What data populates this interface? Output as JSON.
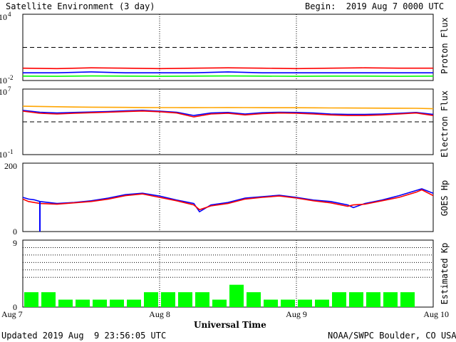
{
  "header": {
    "title": "Satellite Environment (3 day)",
    "begin": "Begin:  2019 Aug 7 0000 UTC"
  },
  "footer": {
    "xlabel": "Universal Time",
    "updated": "Updated 2019 Aug  9 23:56:05 UTC",
    "credit": "NOAA/SWPC Boulder, CO USA"
  },
  "colors": {
    "red": "#ff0000",
    "blue": "#0000ff",
    "green": "#00ff00",
    "orange": "#ffa500",
    "grid": "#000000"
  },
  "chart_data": [
    {
      "type": "line",
      "ylabel": "Proton Flux",
      "yscale": "log",
      "ylim": [
        0.01,
        10000
      ],
      "yticks": [
        {
          "label": "10",
          "sup": "4",
          "value": 10000
        },
        {
          "label": "10",
          "sup": "-2",
          "value": 0.01
        }
      ],
      "threshold": 10,
      "x": [
        0,
        6,
        12,
        18,
        24,
        30,
        36,
        42,
        48,
        54,
        60,
        66,
        72
      ],
      "series": [
        {
          "color": "red",
          "values": [
            0.13,
            0.12,
            0.14,
            0.13,
            0.12,
            0.13,
            0.14,
            0.13,
            0.12,
            0.13,
            0.14,
            0.13,
            0.13
          ]
        },
        {
          "color": "blue",
          "values": [
            0.05,
            0.05,
            0.06,
            0.05,
            0.05,
            0.05,
            0.06,
            0.05,
            0.05,
            0.05,
            0.05,
            0.05,
            0.05
          ]
        },
        {
          "color": "green",
          "values": [
            0.025,
            0.024,
            0.026,
            0.025,
            0.024,
            0.025,
            0.026,
            0.025,
            0.024,
            0.025,
            0.025,
            0.024,
            0.025
          ]
        }
      ]
    },
    {
      "type": "line",
      "ylabel": "Electron Flux",
      "yscale": "log",
      "ylim": [
        0.1,
        10000000
      ],
      "yticks": [
        {
          "label": "10",
          "sup": "7",
          "value": 10000000
        },
        {
          "label": "10",
          "sup": "-1",
          "value": 0.1
        }
      ],
      "threshold": 1000,
      "x": [
        0,
        3,
        6,
        9,
        12,
        15,
        18,
        21,
        24,
        27,
        30,
        33,
        36,
        39,
        42,
        45,
        48,
        51,
        54,
        57,
        60,
        63,
        66,
        69,
        72
      ],
      "series": [
        {
          "color": "orange",
          "values": [
            80000,
            75000,
            70000,
            65000,
            62000,
            60000,
            58000,
            56000,
            55000,
            55000,
            54000,
            55000,
            56000,
            55000,
            54000,
            53000,
            53000,
            52000,
            50000,
            49000,
            48000,
            47000,
            46000,
            45000,
            40000
          ]
        },
        {
          "color": "blue",
          "values": [
            25000,
            15000,
            12000,
            14000,
            16000,
            18000,
            22000,
            25000,
            20000,
            15000,
            6000,
            12000,
            14000,
            9000,
            13000,
            15000,
            14000,
            12000,
            9000,
            8000,
            8000,
            9000,
            11000,
            14000,
            8000
          ]
        },
        {
          "color": "red",
          "values": [
            20000,
            11000,
            9000,
            11000,
            13000,
            15000,
            18000,
            21000,
            17000,
            12000,
            4000,
            9000,
            11000,
            7000,
            10000,
            12000,
            11000,
            9000,
            7000,
            6000,
            6000,
            7000,
            9000,
            12000,
            6000
          ]
        }
      ]
    },
    {
      "type": "line",
      "ylabel": "GOES Hp",
      "ylim": [
        0,
        200
      ],
      "yticks": [
        {
          "label": "200",
          "value": 200
        },
        {
          "label": "0",
          "value": 0
        }
      ],
      "x": [
        0,
        1,
        2,
        3,
        6,
        9,
        12,
        15,
        18,
        21,
        24,
        27,
        30,
        31,
        33,
        36,
        39,
        42,
        45,
        48,
        51,
        54,
        57,
        58,
        60,
        63,
        66,
        69,
        70,
        72
      ],
      "series": [
        {
          "color": "blue",
          "values": [
            100,
            95,
            93,
            88,
            82,
            85,
            90,
            98,
            108,
            112,
            104,
            92,
            82,
            58,
            78,
            85,
            98,
            102,
            106,
            100,
            92,
            88,
            78,
            70,
            82,
            92,
            105,
            120,
            125,
            112
          ]
        },
        {
          "color": "red",
          "values": [
            95,
            88,
            85,
            82,
            80,
            84,
            88,
            95,
            105,
            110,
            100,
            90,
            78,
            64,
            75,
            82,
            95,
            100,
            104,
            98,
            90,
            84,
            74,
            78,
            80,
            90,
            100,
            115,
            122,
            105
          ]
        }
      ],
      "spike": {
        "x": 3,
        "from": 88,
        "to": 0,
        "color": "blue"
      }
    },
    {
      "type": "bar",
      "ylabel": "Estimated Kp",
      "ylim": [
        0,
        9
      ],
      "yticks": [
        {
          "label": "9",
          "value": 9
        },
        {
          "label": "0",
          "value": 0
        }
      ],
      "gridlines": [
        4,
        5,
        6,
        7,
        8
      ],
      "bin_hours": 3,
      "values": [
        2,
        2,
        1,
        1,
        1,
        1,
        1,
        2,
        2,
        2,
        2,
        1,
        3,
        2,
        1,
        1,
        1,
        1,
        2,
        2,
        2,
        2,
        2,
        0
      ],
      "color": "green"
    }
  ],
  "xaxis": {
    "range_hours": [
      0,
      72
    ],
    "ticks": [
      {
        "hour": 0,
        "label": "Aug 7"
      },
      {
        "hour": 24,
        "label": "Aug 8"
      },
      {
        "hour": 48,
        "label": "Aug 9"
      },
      {
        "hour": 72,
        "label": "Aug 10"
      }
    ]
  }
}
